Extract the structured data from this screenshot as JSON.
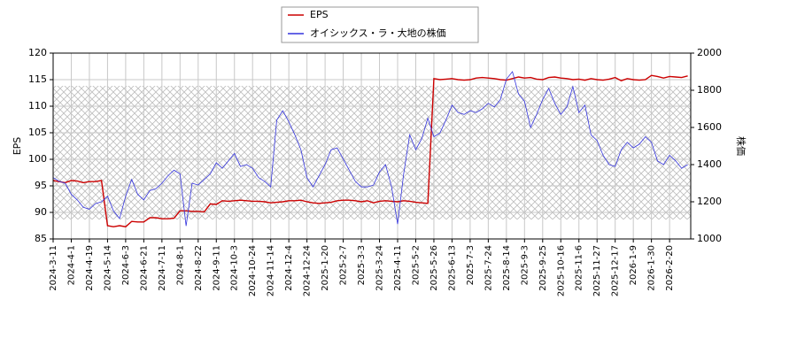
{
  "chart_data": {
    "type": "line",
    "categories": [
      "2024-3-11",
      null,
      null,
      "2024-4-1",
      null,
      null,
      "2024-4-19",
      null,
      null,
      "2024-5-14",
      null,
      null,
      "2024-6-3",
      null,
      null,
      "2024-6-21",
      null,
      null,
      "2024-7-11",
      null,
      null,
      "2024-8-1",
      null,
      null,
      "2024-8-22",
      null,
      null,
      "2024-9-11",
      null,
      null,
      "2024-10-3",
      null,
      null,
      "2024-10-24",
      null,
      null,
      "2024-11-14",
      null,
      null,
      "2024-12-4",
      null,
      null,
      "2024-12-24",
      null,
      null,
      "2025-1-20",
      null,
      null,
      "2025-2-7",
      null,
      null,
      "2025-3-3",
      null,
      null,
      "2025-3-24",
      null,
      null,
      "2025-4-11",
      null,
      null,
      "2025-5-2",
      null,
      null,
      "2025-5-26",
      null,
      null,
      "2025-6-13",
      null,
      null,
      "2025-7-3",
      null,
      null,
      "2025-7-24",
      null,
      null,
      "2025-8-14",
      null,
      null,
      "2025-9-3",
      null,
      null,
      "2025-9-25",
      null,
      null,
      "2025-10-16",
      null,
      null,
      "2025-11-6",
      null,
      null,
      "2025-11-27",
      null,
      null,
      "2025-12-17",
      null,
      null,
      "2026-1-9",
      null,
      null,
      "2026-1-30",
      null,
      null,
      "2026-2-20",
      null,
      null,
      null
    ],
    "series": [
      {
        "name": "EPS",
        "color": "#cc0000",
        "values": [
          96,
          95.8,
          95.6,
          96,
          95.9,
          95.6,
          95.8,
          95.8,
          96,
          87.5,
          87.3,
          87.5,
          87.3,
          88.3,
          88.2,
          88.2,
          89,
          89,
          88.8,
          88.8,
          88.9,
          90.3,
          90.3,
          90.2,
          90.2,
          90.1,
          91.6,
          91.5,
          92.2,
          92.1,
          92.2,
          92.3,
          92.2,
          92.1,
          92.1,
          92.0,
          91.8,
          91.9,
          92.0,
          92.2,
          92.2,
          92.3,
          92.0,
          91.8,
          91.7,
          91.8,
          91.9,
          92.2,
          92.3,
          92.3,
          92.2,
          92.0,
          92.2,
          91.8,
          92.1,
          92.2,
          92.1,
          92.0,
          92.2,
          92.1,
          91.9,
          91.8,
          91.7,
          115.2,
          115.0,
          115.1,
          115.2,
          115.0,
          114.9,
          115.0,
          115.3,
          115.4,
          115.3,
          115.2,
          115.0,
          114.9,
          115.2,
          115.5,
          115.3,
          115.4,
          115.1,
          115.0,
          115.4,
          115.5,
          115.3,
          115.2,
          115.0,
          115.1,
          114.9,
          115.2,
          115.0,
          114.9,
          115.1,
          115.4,
          114.8,
          115.2,
          115.0,
          114.9,
          115.0,
          115.8,
          115.6,
          115.3,
          115.6,
          115.5,
          115.4,
          115.7
        ]
      },
      {
        "name": "オイシックス・ラ・大地の株価",
        "color": "#3333dd",
        "axis": "y2",
        "values": [
          1330,
          1310,
          1300,
          1240,
          1210,
          1170,
          1160,
          1190,
          1200,
          1230,
          1150,
          1110,
          1230,
          1320,
          1240,
          1210,
          1260,
          1270,
          1300,
          1340,
          1370,
          1350,
          1070,
          1300,
          1290,
          1320,
          1350,
          1410,
          1380,
          1420,
          1460,
          1390,
          1400,
          1380,
          1330,
          1310,
          1280,
          1640,
          1690,
          1630,
          1560,
          1480,
          1330,
          1280,
          1340,
          1400,
          1480,
          1490,
          1430,
          1370,
          1310,
          1280,
          1280,
          1290,
          1360,
          1400,
          1280,
          1080,
          1350,
          1560,
          1480,
          1540,
          1650,
          1550,
          1570,
          1640,
          1720,
          1680,
          1670,
          1690,
          1680,
          1700,
          1730,
          1710,
          1750,
          1860,
          1900,
          1780,
          1740,
          1600,
          1670,
          1750,
          1810,
          1730,
          1670,
          1710,
          1820,
          1680,
          1720,
          1560,
          1530,
          1450,
          1400,
          1390,
          1480,
          1520,
          1490,
          1510,
          1550,
          1520,
          1420,
          1400,
          1450,
          1420,
          1380,
          1400
        ]
      }
    ],
    "ylabel": "EPS",
    "y2label": "株価",
    "ylim": [
      85,
      120
    ],
    "yticks": [
      85,
      90,
      95,
      100,
      105,
      110,
      115,
      120
    ],
    "y2lim": [
      1000,
      2000
    ],
    "y2ticks": [
      1000,
      1200,
      1400,
      1600,
      1800,
      2000
    ],
    "grid": true,
    "legend": "upper center"
  }
}
